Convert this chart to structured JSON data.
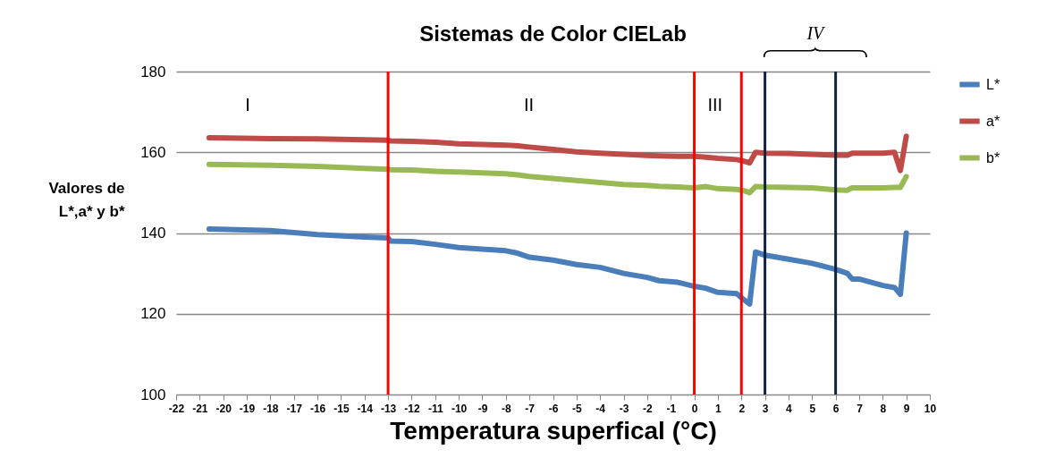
{
  "chart_data": {
    "type": "line",
    "title": "Sistemas de Color CIELab",
    "xlabel": "Temperatura superfical (°C)",
    "ylabel": "Valores de L*,a* y b*",
    "x": [
      -20.6,
      -18,
      -16,
      -14,
      -13,
      -12.9,
      -12,
      -11,
      -10,
      -8,
      -7.5,
      -7,
      -6,
      -5,
      -4,
      -3,
      -2,
      -1.5,
      -0.7,
      0,
      0.5,
      1,
      1.8,
      2.1,
      2.35,
      2.6,
      3,
      4,
      5,
      6,
      6.5,
      6.7,
      7,
      8,
      8.5,
      8.75,
      9
    ],
    "series": [
      {
        "name": "L*",
        "color": "#4a7ebb",
        "values": [
          141,
          140.6,
          139.6,
          139,
          138.8,
          138,
          137.9,
          137.2,
          136.4,
          135.6,
          135,
          134,
          133.3,
          132.2,
          131.5,
          130,
          129,
          128.2,
          127.8,
          126.8,
          126.3,
          125.3,
          125,
          123.5,
          122.4,
          135.3,
          134.5,
          133.5,
          132.5,
          131,
          130,
          128.6,
          128.6,
          127,
          126.5,
          124.8,
          140
        ]
      },
      {
        "name": "a*",
        "color": "#be4b48",
        "values": [
          163.6,
          163.4,
          163.3,
          163.1,
          163,
          162.8,
          162.7,
          162.5,
          162.1,
          161.8,
          161.6,
          161.3,
          160.7,
          160.1,
          159.8,
          159.5,
          159.2,
          159.1,
          159,
          159,
          158.8,
          158.5,
          158.2,
          157.8,
          157.4,
          160,
          159.8,
          159.7,
          159.5,
          159.3,
          159.3,
          159.8,
          159.8,
          159.8,
          160,
          155.5,
          164
        ]
      },
      {
        "name": "b*",
        "color": "#98b954",
        "values": [
          157,
          156.8,
          156.5,
          156,
          155.8,
          155.7,
          155.6,
          155.3,
          155.1,
          154.7,
          154.4,
          154,
          153.5,
          153,
          152.5,
          152,
          151.8,
          151.6,
          151.4,
          151.2,
          151.5,
          151,
          150.8,
          150.5,
          150,
          151.5,
          151.4,
          151.3,
          151.2,
          150.7,
          150.6,
          151.2,
          151.2,
          151.2,
          151.3,
          151.3,
          154
        ]
      }
    ],
    "xlim": [
      -22,
      10
    ],
    "xticks": [
      -22,
      -21,
      -20,
      -19,
      -18,
      -17,
      -16,
      -15,
      -14,
      -13,
      -12,
      -11,
      -10,
      -9,
      -8,
      -7,
      -6,
      -5,
      -4,
      -3,
      -2,
      -1,
      0,
      1,
      2,
      3,
      4,
      5,
      6,
      7,
      8,
      9,
      10
    ],
    "ylim": [
      100,
      180
    ],
    "yticks": [
      100,
      120,
      140,
      160,
      180
    ],
    "ref_lines": [
      {
        "axis": "x",
        "value": -13,
        "color": "#ff0000"
      },
      {
        "axis": "x",
        "value": 0,
        "color": "#ff0000"
      },
      {
        "axis": "x",
        "value": 2,
        "color": "#ff0000"
      },
      {
        "axis": "x",
        "value": 3,
        "color": "#0f2340"
      },
      {
        "axis": "x",
        "value": 6,
        "color": "#0f2340"
      }
    ],
    "annotations": [
      "I",
      "II",
      "III",
      "IV"
    ],
    "grid": "y",
    "legend": "right",
    "line_style": "solid",
    "marker": "none"
  }
}
